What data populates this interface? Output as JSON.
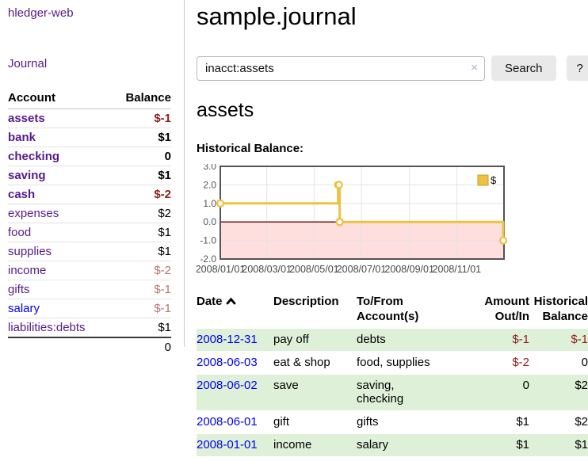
{
  "app": {
    "brand": "hledger-web"
  },
  "sidebar": {
    "nav": {
      "journal": "Journal"
    },
    "table": {
      "headers": {
        "account": "Account",
        "balance": "Balance"
      },
      "accounts": [
        {
          "name": "assets",
          "depth": 1,
          "matched": true,
          "balance": "$-1",
          "balance_style": "neg-strong",
          "link_style": ""
        },
        {
          "name": "bank",
          "depth": 2,
          "matched": true,
          "balance": "$1",
          "balance_style": "",
          "link_style": ""
        },
        {
          "name": "checking",
          "depth": 3,
          "matched": true,
          "balance": "0",
          "balance_style": "",
          "link_style": ""
        },
        {
          "name": "saving",
          "depth": 3,
          "matched": true,
          "balance": "$1",
          "balance_style": "",
          "link_style": ""
        },
        {
          "name": "cash",
          "depth": 2,
          "matched": true,
          "balance": "$-2",
          "balance_style": "neg-strong",
          "link_style": ""
        },
        {
          "name": "expenses",
          "depth": 1,
          "matched": false,
          "balance": "$2",
          "balance_style": "",
          "link_style": ""
        },
        {
          "name": "food",
          "depth": 2,
          "matched": false,
          "balance": "$1",
          "balance_style": "",
          "link_style": ""
        },
        {
          "name": "supplies",
          "depth": 2,
          "matched": false,
          "balance": "$1",
          "balance_style": "",
          "link_style": ""
        },
        {
          "name": "income",
          "depth": 1,
          "matched": false,
          "balance": "$-2",
          "balance_style": "neg-muted",
          "link_style": ""
        },
        {
          "name": "gifts",
          "depth": 2,
          "matched": false,
          "balance": "$-1",
          "balance_style": "neg-muted",
          "link_style": ""
        },
        {
          "name": "salary",
          "depth": 2,
          "matched": false,
          "balance": "$-1",
          "balance_style": "neg-muted",
          "link_style": "unvisited"
        },
        {
          "name": "liabilities:debts",
          "depth": 1,
          "matched": false,
          "balance": "$1",
          "balance_style": "",
          "link_style": ""
        }
      ],
      "total": "0"
    }
  },
  "main": {
    "title": "sample.journal",
    "search": {
      "value": "inacct:assets",
      "clear_icon": "×",
      "button": "Search",
      "help_button": "?"
    },
    "account_heading": "assets",
    "chart_heading": "Historical Balance:",
    "register": {
      "headers": {
        "date": "Date",
        "description": "Description",
        "accounts": "To/From\nAccount(s)",
        "amount": "Amount\nOut/In",
        "balance": "Historical\nBalance"
      },
      "rows": [
        {
          "date": "2008-12-31",
          "description": "pay off",
          "accounts": "debts",
          "amount": "$-1",
          "amount_style": "neg",
          "balance": "$-1",
          "balance_style": "neg",
          "highlighted": true
        },
        {
          "date": "2008-06-03",
          "description": "eat & shop",
          "accounts": "food, supplies",
          "amount": "$-2",
          "amount_style": "neg",
          "balance": "0",
          "balance_style": "",
          "highlighted": false
        },
        {
          "date": "2008-06-02",
          "description": "save",
          "accounts": "saving,\nchecking",
          "amount": "0",
          "amount_style": "",
          "balance": "$2",
          "balance_style": "",
          "highlighted": true
        },
        {
          "date": "2008-06-01",
          "description": "gift",
          "accounts": "gifts",
          "amount": "$1",
          "amount_style": "",
          "balance": "$2",
          "balance_style": "",
          "highlighted": false
        },
        {
          "date": "2008-01-01",
          "description": "income",
          "accounts": "salary",
          "amount": "$1",
          "amount_style": "",
          "balance": "$1",
          "balance_style": "",
          "highlighted": true
        }
      ]
    }
  },
  "chart_data": {
    "type": "line",
    "title": "Historical Balance:",
    "step": true,
    "x_unit": "days since 2008-01-01",
    "x_domain": [
      0,
      366
    ],
    "ylim": [
      -2,
      3
    ],
    "yticks": [
      3.0,
      2.0,
      1.0,
      0.0,
      -1.0,
      -2.0
    ],
    "xticks": [
      {
        "x": 0,
        "label": "2008/01/01"
      },
      {
        "x": 60,
        "label": "2008/03/01"
      },
      {
        "x": 121,
        "label": "2008/05/01"
      },
      {
        "x": 182,
        "label": "2008/07/01"
      },
      {
        "x": 244,
        "label": "2008/09/01"
      },
      {
        "x": 305,
        "label": "2008/11/01"
      }
    ],
    "series": [
      {
        "name": "$",
        "color": "#EDC240",
        "points": [
          {
            "x": 0,
            "date": "2008-01-01",
            "y": 1
          },
          {
            "x": 152,
            "date": "2008-06-01",
            "y": 2
          },
          {
            "x": 153,
            "date": "2008-06-02",
            "y": 2
          },
          {
            "x": 154,
            "date": "2008-06-03",
            "y": 0
          },
          {
            "x": 365,
            "date": "2008-12-31",
            "y": -1
          }
        ]
      }
    ],
    "legend": {
      "position": "top-right",
      "label": "$"
    },
    "grid": true,
    "negative_region_color": "#ffdede",
    "zero_line_color": "#7a0000",
    "border_color": "#545454"
  },
  "colors": {
    "link_visited": "#551a8b",
    "link_unvisited": "#0000ee",
    "negative_strong": "#8f1d1d",
    "negative_muted": "#bb7272",
    "row_highlight": "#dff0d8",
    "series": "#EDC240"
  }
}
